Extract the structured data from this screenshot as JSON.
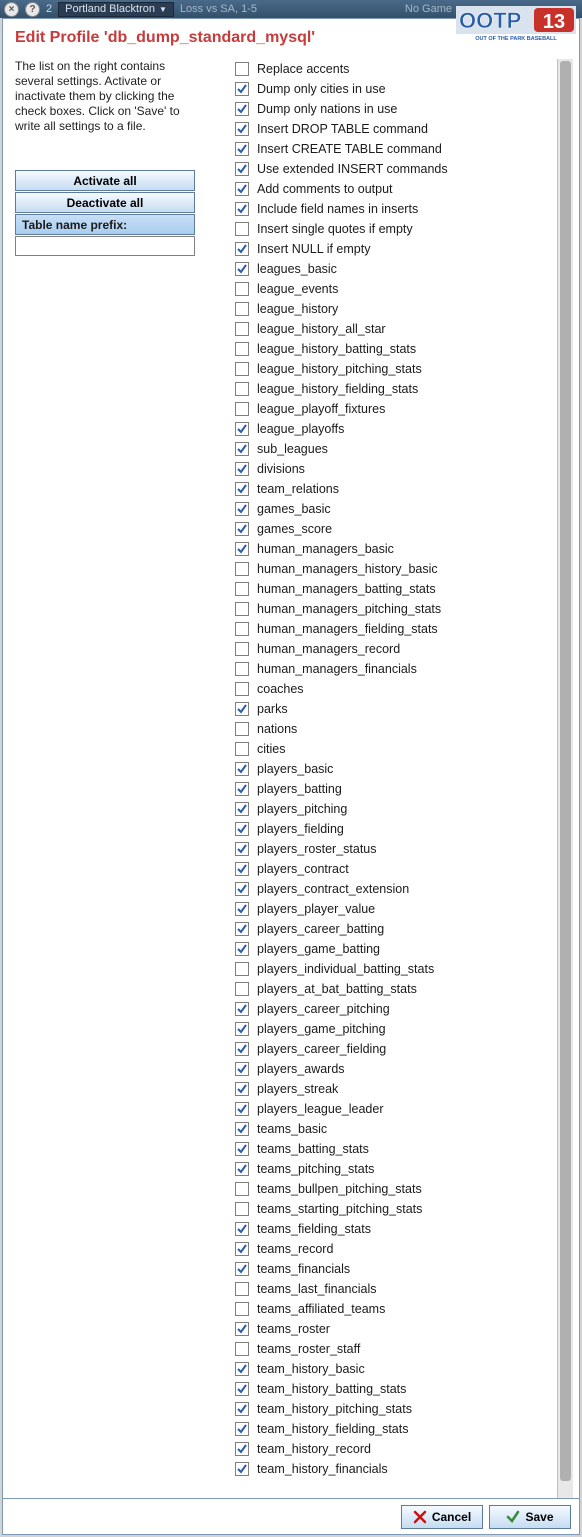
{
  "topbar": {
    "num": "2",
    "team": "Portland Blacktron",
    "status": "Loss vs SA, 1-5",
    "nogame": "No Game"
  },
  "logo": {
    "text_top": "OOTP",
    "text_num": "13",
    "subtitle": "OUT OF THE PARK BASEBALL",
    "colors": {
      "bg": "#2a5ca8",
      "accent_red": "#c11",
      "accent_green": "#3a8a3a"
    }
  },
  "title": "Edit Profile 'db_dump_standard_mysql'",
  "instructions": "The list on the right contains several settings. Activate or inactivate them by clicking the check boxes. Click on 'Save' to write all settings to a file.",
  "buttons": {
    "activate_all": "Activate all",
    "deactivate_all": "Deactivate all",
    "prefix_label": "Table name prefix:",
    "prefix_value": ""
  },
  "footer": {
    "cancel": "Cancel",
    "save": "Save"
  },
  "settings": [
    {
      "label": "Replace accents",
      "checked": false
    },
    {
      "label": "Dump only cities in use",
      "checked": true
    },
    {
      "label": "Dump only nations in use",
      "checked": true
    },
    {
      "label": "Insert DROP TABLE command",
      "checked": true
    },
    {
      "label": "Insert CREATE TABLE command",
      "checked": true
    },
    {
      "label": "Use extended INSERT commands",
      "checked": true
    },
    {
      "label": "Add comments to output",
      "checked": true
    },
    {
      "label": "Include field names in inserts",
      "checked": true
    },
    {
      "label": "Insert single quotes if empty",
      "checked": false
    },
    {
      "label": "Insert NULL if empty",
      "checked": true
    },
    {
      "label": "leagues_basic",
      "checked": true
    },
    {
      "label": "league_events",
      "checked": false
    },
    {
      "label": "league_history",
      "checked": false
    },
    {
      "label": "league_history_all_star",
      "checked": false
    },
    {
      "label": "league_history_batting_stats",
      "checked": false
    },
    {
      "label": "league_history_pitching_stats",
      "checked": false
    },
    {
      "label": "league_history_fielding_stats",
      "checked": false
    },
    {
      "label": "league_playoff_fixtures",
      "checked": false
    },
    {
      "label": "league_playoffs",
      "checked": true
    },
    {
      "label": "sub_leagues",
      "checked": true
    },
    {
      "label": "divisions",
      "checked": true
    },
    {
      "label": "team_relations",
      "checked": true
    },
    {
      "label": "games_basic",
      "checked": true
    },
    {
      "label": "games_score",
      "checked": true
    },
    {
      "label": "human_managers_basic",
      "checked": true
    },
    {
      "label": "human_managers_history_basic",
      "checked": false
    },
    {
      "label": "human_managers_batting_stats",
      "checked": false
    },
    {
      "label": "human_managers_pitching_stats",
      "checked": false
    },
    {
      "label": "human_managers_fielding_stats",
      "checked": false
    },
    {
      "label": "human_managers_record",
      "checked": false
    },
    {
      "label": "human_managers_financials",
      "checked": false
    },
    {
      "label": "coaches",
      "checked": false
    },
    {
      "label": "parks",
      "checked": true
    },
    {
      "label": "nations",
      "checked": false
    },
    {
      "label": "cities",
      "checked": false
    },
    {
      "label": "players_basic",
      "checked": true
    },
    {
      "label": "players_batting",
      "checked": true
    },
    {
      "label": "players_pitching",
      "checked": true
    },
    {
      "label": "players_fielding",
      "checked": true
    },
    {
      "label": "players_roster_status",
      "checked": true
    },
    {
      "label": "players_contract",
      "checked": true
    },
    {
      "label": "players_contract_extension",
      "checked": true
    },
    {
      "label": "players_player_value",
      "checked": true
    },
    {
      "label": "players_career_batting",
      "checked": true
    },
    {
      "label": "players_game_batting",
      "checked": true
    },
    {
      "label": "players_individual_batting_stats",
      "checked": false
    },
    {
      "label": "players_at_bat_batting_stats",
      "checked": false
    },
    {
      "label": "players_career_pitching",
      "checked": true
    },
    {
      "label": "players_game_pitching",
      "checked": true
    },
    {
      "label": "players_career_fielding",
      "checked": true
    },
    {
      "label": "players_awards",
      "checked": true
    },
    {
      "label": "players_streak",
      "checked": true
    },
    {
      "label": "players_league_leader",
      "checked": true
    },
    {
      "label": "teams_basic",
      "checked": true
    },
    {
      "label": "teams_batting_stats",
      "checked": true
    },
    {
      "label": "teams_pitching_stats",
      "checked": true
    },
    {
      "label": "teams_bullpen_pitching_stats",
      "checked": false
    },
    {
      "label": "teams_starting_pitching_stats",
      "checked": false
    },
    {
      "label": "teams_fielding_stats",
      "checked": true
    },
    {
      "label": "teams_record",
      "checked": true
    },
    {
      "label": "teams_financials",
      "checked": true
    },
    {
      "label": "teams_last_financials",
      "checked": false
    },
    {
      "label": "teams_affiliated_teams",
      "checked": false
    },
    {
      "label": "teams_roster",
      "checked": true
    },
    {
      "label": "teams_roster_staff",
      "checked": false
    },
    {
      "label": "team_history_basic",
      "checked": true
    },
    {
      "label": "team_history_batting_stats",
      "checked": true
    },
    {
      "label": "team_history_pitching_stats",
      "checked": true
    },
    {
      "label": "team_history_fielding_stats",
      "checked": true
    },
    {
      "label": "team_history_record",
      "checked": true
    },
    {
      "label": "team_history_financials",
      "checked": true
    }
  ]
}
